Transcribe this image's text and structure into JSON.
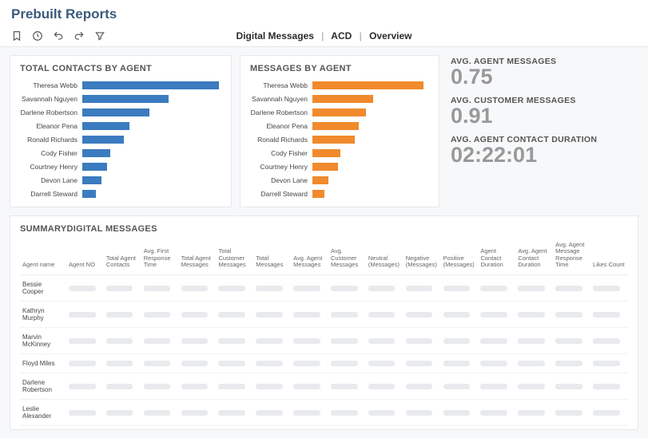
{
  "page": {
    "title": "Prebuilt Reports"
  },
  "breadcrumb": {
    "a": "Digital Messages",
    "b": "ACD",
    "c": "Overview"
  },
  "colors": {
    "contacts_bar": "#3b7bbf",
    "messages_bar": "#f08a2c",
    "placeholder": "#e8eaed",
    "metric_value": "#999999"
  },
  "charts": {
    "contacts": {
      "title": "TOTAL CONTACTS BY AGENT",
      "type": "bar-horizontal",
      "max": 100,
      "series": [
        {
          "label": "Theresa Webb",
          "value": 98
        },
        {
          "label": "Savannah Nguyen",
          "value": 62
        },
        {
          "label": "Darlene Robertson",
          "value": 48
        },
        {
          "label": "Eleanor Pena",
          "value": 34
        },
        {
          "label": "Ronald Richards",
          "value": 30
        },
        {
          "label": "Cody Fisher",
          "value": 20
        },
        {
          "label": "Courtney Henry",
          "value": 18
        },
        {
          "label": "Devon Lane",
          "value": 14
        },
        {
          "label": "Darrell Steward",
          "value": 10
        }
      ]
    },
    "messages": {
      "title": "MESSAGES BY AGENT",
      "type": "bar-horizontal",
      "max": 100,
      "series": [
        {
          "label": "Theresa Webb",
          "value": 95
        },
        {
          "label": "Savannah Nguyen",
          "value": 52
        },
        {
          "label": "Darlene Robertson",
          "value": 46
        },
        {
          "label": "Eleanor Pena",
          "value": 40
        },
        {
          "label": "Ronald Richards",
          "value": 36
        },
        {
          "label": "Cody Fisher",
          "value": 24
        },
        {
          "label": "Courtney Henry",
          "value": 22
        },
        {
          "label": "Devon Lane",
          "value": 14
        },
        {
          "label": "Darrell Steward",
          "value": 10
        }
      ]
    }
  },
  "metrics": {
    "agent_messages": {
      "label": "AVG. AGENT MESSAGES",
      "value": "0.75"
    },
    "customer_messages": {
      "label": "AVG. CUSTOMER MESSAGES",
      "value": "0.91"
    },
    "contact_duration": {
      "label": "AVG. AGENT CONTACT DURATION",
      "value": "02:22:01"
    }
  },
  "summary": {
    "title": "SUMMARYDIGITAL MESSAGES",
    "columns": [
      "Agent name",
      "Agent NO",
      "Total Agent Contacts",
      "Avg. First Response Time",
      "Total Agent Messages",
      "Total Customer Messages",
      "Total Messages",
      "Avg. Agent Messages",
      "Avg. Customer Messages",
      "Neutral (Messages)",
      "Negative (Messages)",
      "Positive (Messages)",
      "Agent Contact Duration",
      "Avg. Agent Contact Duration",
      "Avg. Agent Message Response Time",
      "Likes Count"
    ],
    "rows": [
      {
        "name": "Bessie Cooper"
      },
      {
        "name": "Kathryn Murphy"
      },
      {
        "name": "Marvin McKinney"
      },
      {
        "name": "Floyd Miles"
      },
      {
        "name": "Darlene Robertson"
      },
      {
        "name": "Leslie Alexander"
      }
    ]
  }
}
